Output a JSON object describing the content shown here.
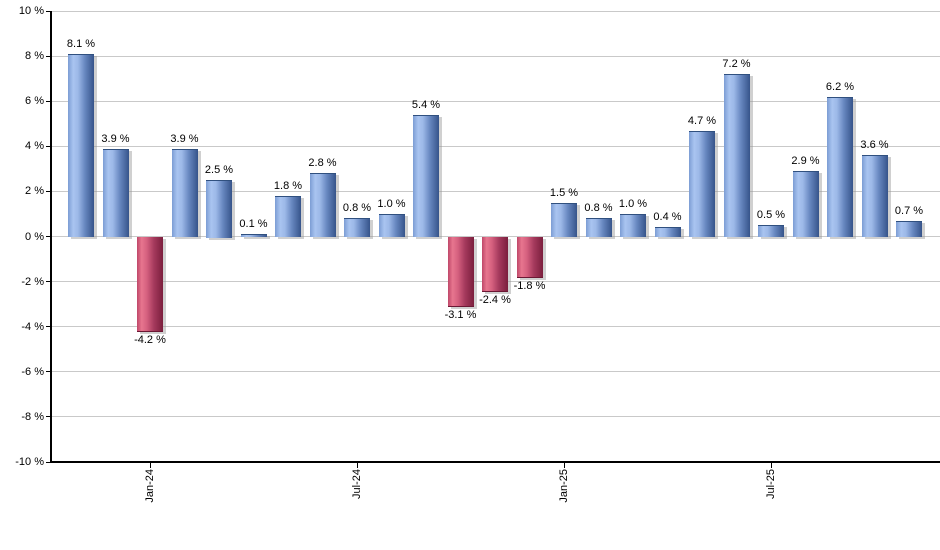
{
  "chart_data": {
    "type": "bar",
    "title": "",
    "unit": "%",
    "values": [
      8.1,
      3.9,
      -4.2,
      3.9,
      2.5,
      0.1,
      1.8,
      2.8,
      0.8,
      1.0,
      5.4,
      -3.1,
      -2.4,
      -1.8,
      1.5,
      0.8,
      1.0,
      0.4,
      4.7,
      7.2,
      0.5,
      2.9,
      6.2,
      3.6,
      0.7
    ],
    "bar_labels": [
      "8.1 %",
      "3.9 %",
      "-4.2 %",
      "3.9 %",
      "2.5 %",
      "0.1 %",
      "1.8 %",
      "2.8 %",
      "0.8 %",
      "1.0 %",
      "5.4 %",
      "-3.1 %",
      "-2.4 %",
      "-1.8 %",
      "1.5 %",
      "0.8 %",
      "1.0 %",
      "0.4 %",
      "4.7 %",
      "7.2 %",
      "0.5 %",
      "2.9 %",
      "6.2 %",
      "3.6 %",
      "0.7 %"
    ],
    "ylim": [
      -10,
      10
    ],
    "y_tick_values": [
      10,
      8,
      6,
      4,
      2,
      0,
      -2,
      -4,
      -6,
      -8,
      -10
    ],
    "y_tick_labels": [
      "10 %",
      "8 %",
      "6 %",
      "4 %",
      "2 %",
      "0 %",
      "-2 %",
      "-4 %",
      "-6 %",
      "-8 %",
      "-10 %"
    ],
    "x_ticks": [
      {
        "label": "Jan-24",
        "bar_index": 2
      },
      {
        "label": "Jul-24",
        "bar_index": 8
      },
      {
        "label": "Jan-25",
        "bar_index": 14
      },
      {
        "label": "Jul-25",
        "bar_index": 20
      }
    ],
    "grid": true,
    "legend": false,
    "colors": {
      "positive_bar": "#6f94cc",
      "positive_gradient": [
        "#7c9dd4",
        "#a9c4f0",
        "#9db9e8",
        "#6787c0",
        "#36548a"
      ],
      "negative_bar": "#c4486b",
      "negative_gradient": [
        "#bf4769",
        "#e7768f",
        "#d5607f",
        "#a53a5d",
        "#7b1e3d"
      ],
      "gridline": "#c9c9c9",
      "axis": "#000000",
      "label_text": "#000000",
      "background": "#ffffff"
    }
  }
}
